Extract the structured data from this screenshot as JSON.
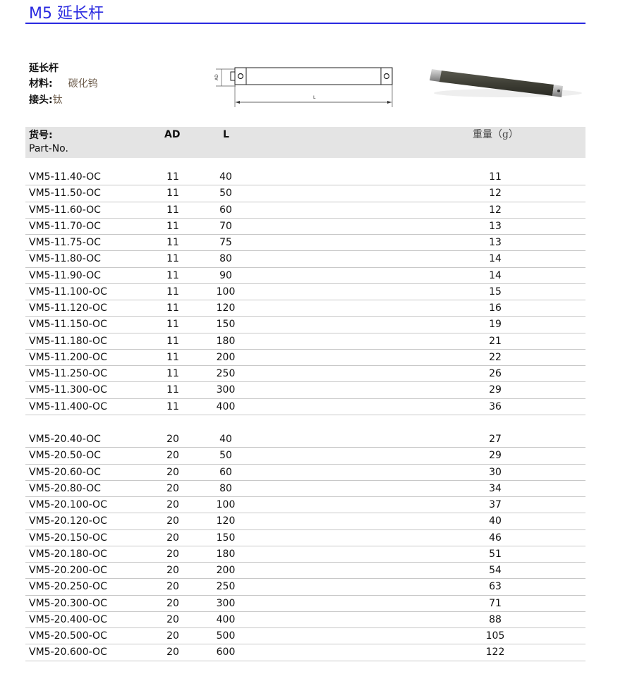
{
  "title": "M5 延长杆",
  "spec": {
    "heading": "延长杆",
    "material_label": "材料:",
    "material_value": "碳化钨",
    "joint_label": "接头:",
    "joint_value": "钛"
  },
  "drawing": {
    "ad_label": "AD",
    "l_label": "L"
  },
  "table": {
    "headers": {
      "part_cn": "货号:",
      "part_en": "Part-No.",
      "ad": "AD",
      "l": "L",
      "weight": "重量（g）"
    },
    "group1": [
      {
        "part": "VM5-11.40-OC",
        "ad": "11",
        "l": "40",
        "w": "11"
      },
      {
        "part": "VM5-11.50-OC",
        "ad": "11",
        "l": "50",
        "w": "12"
      },
      {
        "part": "VM5-11.60-OC",
        "ad": "11",
        "l": "60",
        "w": "12"
      },
      {
        "part": "VM5-11.70-OC",
        "ad": "11",
        "l": "70",
        "w": "13"
      },
      {
        "part": "VM5-11.75-OC",
        "ad": "11",
        "l": "75",
        "w": "13"
      },
      {
        "part": "VM5-11.80-OC",
        "ad": "11",
        "l": "80",
        "w": "14"
      },
      {
        "part": "VM5-11.90-OC",
        "ad": "11",
        "l": "90",
        "w": "14"
      },
      {
        "part": "VM5-11.100-OC",
        "ad": "11",
        "l": "100",
        "w": "15"
      },
      {
        "part": "VM5-11.120-OC",
        "ad": "11",
        "l": "120",
        "w": "16"
      },
      {
        "part": "VM5-11.150-OC",
        "ad": "11",
        "l": "150",
        "w": "19"
      },
      {
        "part": "VM5-11.180-OC",
        "ad": "11",
        "l": "180",
        "w": "21"
      },
      {
        "part": "VM5-11.200-OC",
        "ad": "11",
        "l": "200",
        "w": "22"
      },
      {
        "part": "VM5-11.250-OC",
        "ad": "11",
        "l": "250",
        "w": "26"
      },
      {
        "part": "VM5-11.300-OC",
        "ad": "11",
        "l": "300",
        "w": "29"
      },
      {
        "part": "VM5-11.400-OC",
        "ad": "11",
        "l": "400",
        "w": "36"
      }
    ],
    "group2": [
      {
        "part": "VM5-20.40-OC",
        "ad": "20",
        "l": "40",
        "w": "27"
      },
      {
        "part": "VM5-20.50-OC",
        "ad": "20",
        "l": "50",
        "w": "29"
      },
      {
        "part": "VM5-20.60-OC",
        "ad": "20",
        "l": "60",
        "w": "30"
      },
      {
        "part": "VM5-20.80-OC",
        "ad": "20",
        "l": "80",
        "w": "34"
      },
      {
        "part": "VM5-20.100-OC",
        "ad": "20",
        "l": "100",
        "w": "37"
      },
      {
        "part": "VM5-20.120-OC",
        "ad": "20",
        "l": "120",
        "w": "40"
      },
      {
        "part": "VM5-20.150-OC",
        "ad": "20",
        "l": "150",
        "w": "46"
      },
      {
        "part": "VM5-20.180-OC",
        "ad": "20",
        "l": "180",
        "w": "51"
      },
      {
        "part": "VM5-20.200-OC",
        "ad": "20",
        "l": "200",
        "w": "54"
      },
      {
        "part": "VM5-20.250-OC",
        "ad": "20",
        "l": "250",
        "w": "63"
      },
      {
        "part": "VM5-20.300-OC",
        "ad": "20",
        "l": "300",
        "w": "71"
      },
      {
        "part": "VM5-20.400-OC",
        "ad": "20",
        "l": "400",
        "w": "88"
      },
      {
        "part": "VM5-20.500-OC",
        "ad": "20",
        "l": "500",
        "w": "105"
      },
      {
        "part": "VM5-20.600-OC",
        "ad": "20",
        "l": "600",
        "w": "122"
      }
    ]
  },
  "colors": {
    "title": "#2a2ae0",
    "header_bg": "#e4e4e4",
    "rod": "#3f3f36"
  }
}
